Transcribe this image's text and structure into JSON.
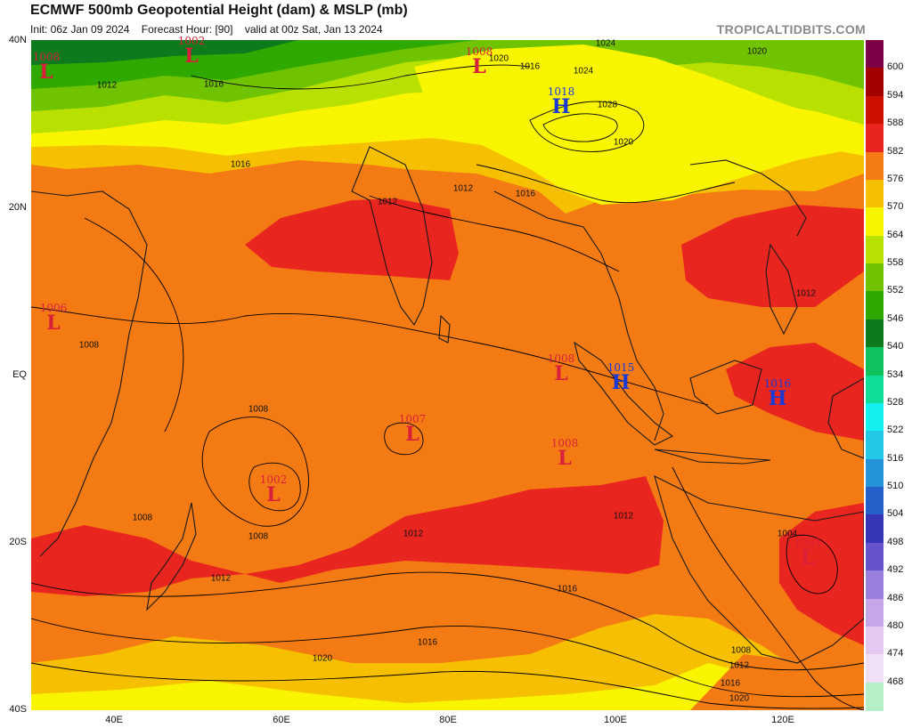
{
  "header": {
    "title": "ECMWF 500mb Geopotential Height (dam) & MSLP (mb)",
    "init": "Init: 06z Jan 09 2024",
    "forecast_hour": "Forecast Hour: [90]",
    "valid": "valid at 00z Sat, Jan 13 2024",
    "watermark": "TROPICALTIDBITS.COM"
  },
  "lat_labels": [
    "40N",
    "20N",
    "EQ",
    "20S",
    "40S"
  ],
  "lon_labels": [
    "40E",
    "60E",
    "80E",
    "100E",
    "120E"
  ],
  "colorbar": {
    "labels": [
      "600",
      "594",
      "588",
      "582",
      "576",
      "570",
      "564",
      "558",
      "552",
      "546",
      "540",
      "534",
      "528",
      "522",
      "516",
      "510",
      "504",
      "498",
      "492",
      "486",
      "480",
      "474",
      "468"
    ],
    "colors": [
      "#7d0047",
      "#a30000",
      "#cc1100",
      "#e8251f",
      "#f47b14",
      "#f6c000",
      "#f9f500",
      "#b8e000",
      "#6fc300",
      "#2fa800",
      "#0d7a1e",
      "#10c25e",
      "#11dd9a",
      "#14f0f0",
      "#22c8e6",
      "#2593d8",
      "#2560c8",
      "#3535b5",
      "#6654cc",
      "#9a80dc",
      "#c6a6e8",
      "#e3c8f0",
      "#f0dff5",
      "#b6f0c8"
    ]
  },
  "pressure_systems": [
    {
      "type": "L",
      "value": "1008",
      "color": "#d8203a"
    },
    {
      "type": "L",
      "value": "1002",
      "color": "#d8203a"
    },
    {
      "type": "L",
      "value": "1008",
      "color": "#d8203a"
    },
    {
      "type": "H",
      "value": "1018",
      "color": "#1a3ad8"
    },
    {
      "type": "L",
      "value": "1006",
      "color": "#d8203a"
    },
    {
      "type": "L",
      "value": "1008",
      "color": "#d8203a"
    },
    {
      "type": "H",
      "value": "1015",
      "color": "#1a3ad8"
    },
    {
      "type": "H",
      "value": "1016",
      "color": "#1a3ad8"
    },
    {
      "type": "L",
      "value": "1007",
      "color": "#d8203a"
    },
    {
      "type": "L",
      "value": "1008",
      "color": "#d8203a"
    },
    {
      "type": "L",
      "value": "1002",
      "color": "#d8203a"
    },
    {
      "type": "L",
      "value": "1001",
      "color": "#d8203a"
    }
  ],
  "isobar_labels": [
    "1024",
    "1020",
    "1016",
    "1012",
    "1016",
    "1012",
    "1012",
    "1008",
    "1008",
    "1008",
    "1008",
    "1012",
    "1012",
    "1016",
    "1016",
    "1020",
    "1008",
    "1004",
    "1012",
    "1016",
    "1020",
    "1012",
    "1016",
    "1012",
    "1020",
    "1024",
    "1028",
    "1016",
    "1020"
  ]
}
